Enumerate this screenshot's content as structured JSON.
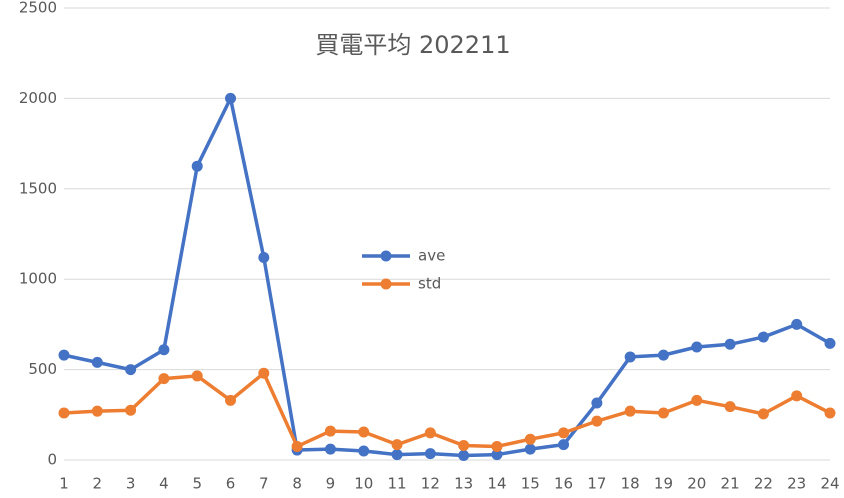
{
  "chart_data": {
    "type": "line",
    "title": "買電平均 202211",
    "categories": [
      "1",
      "2",
      "3",
      "4",
      "5",
      "6",
      "7",
      "8",
      "9",
      "10",
      "11",
      "12",
      "13",
      "14",
      "15",
      "16",
      "17",
      "18",
      "19",
      "20",
      "21",
      "22",
      "23",
      "24"
    ],
    "series": [
      {
        "name": "ave",
        "color": "#4472c4",
        "values": [
          580,
          540,
          500,
          610,
          1625,
          2000,
          1120,
          55,
          60,
          50,
          30,
          35,
          25,
          30,
          60,
          85,
          315,
          570,
          580,
          625,
          640,
          680,
          750,
          645
        ]
      },
      {
        "name": "std",
        "color": "#ed7d31",
        "values": [
          260,
          270,
          275,
          450,
          465,
          330,
          480,
          75,
          160,
          155,
          85,
          150,
          80,
          75,
          115,
          150,
          215,
          270,
          260,
          330,
          295,
          255,
          355,
          260
        ]
      }
    ],
    "ylim": [
      0,
      2500
    ],
    "yticks": [
      0,
      500,
      1000,
      1500,
      2000,
      2500
    ],
    "grid": true
  }
}
